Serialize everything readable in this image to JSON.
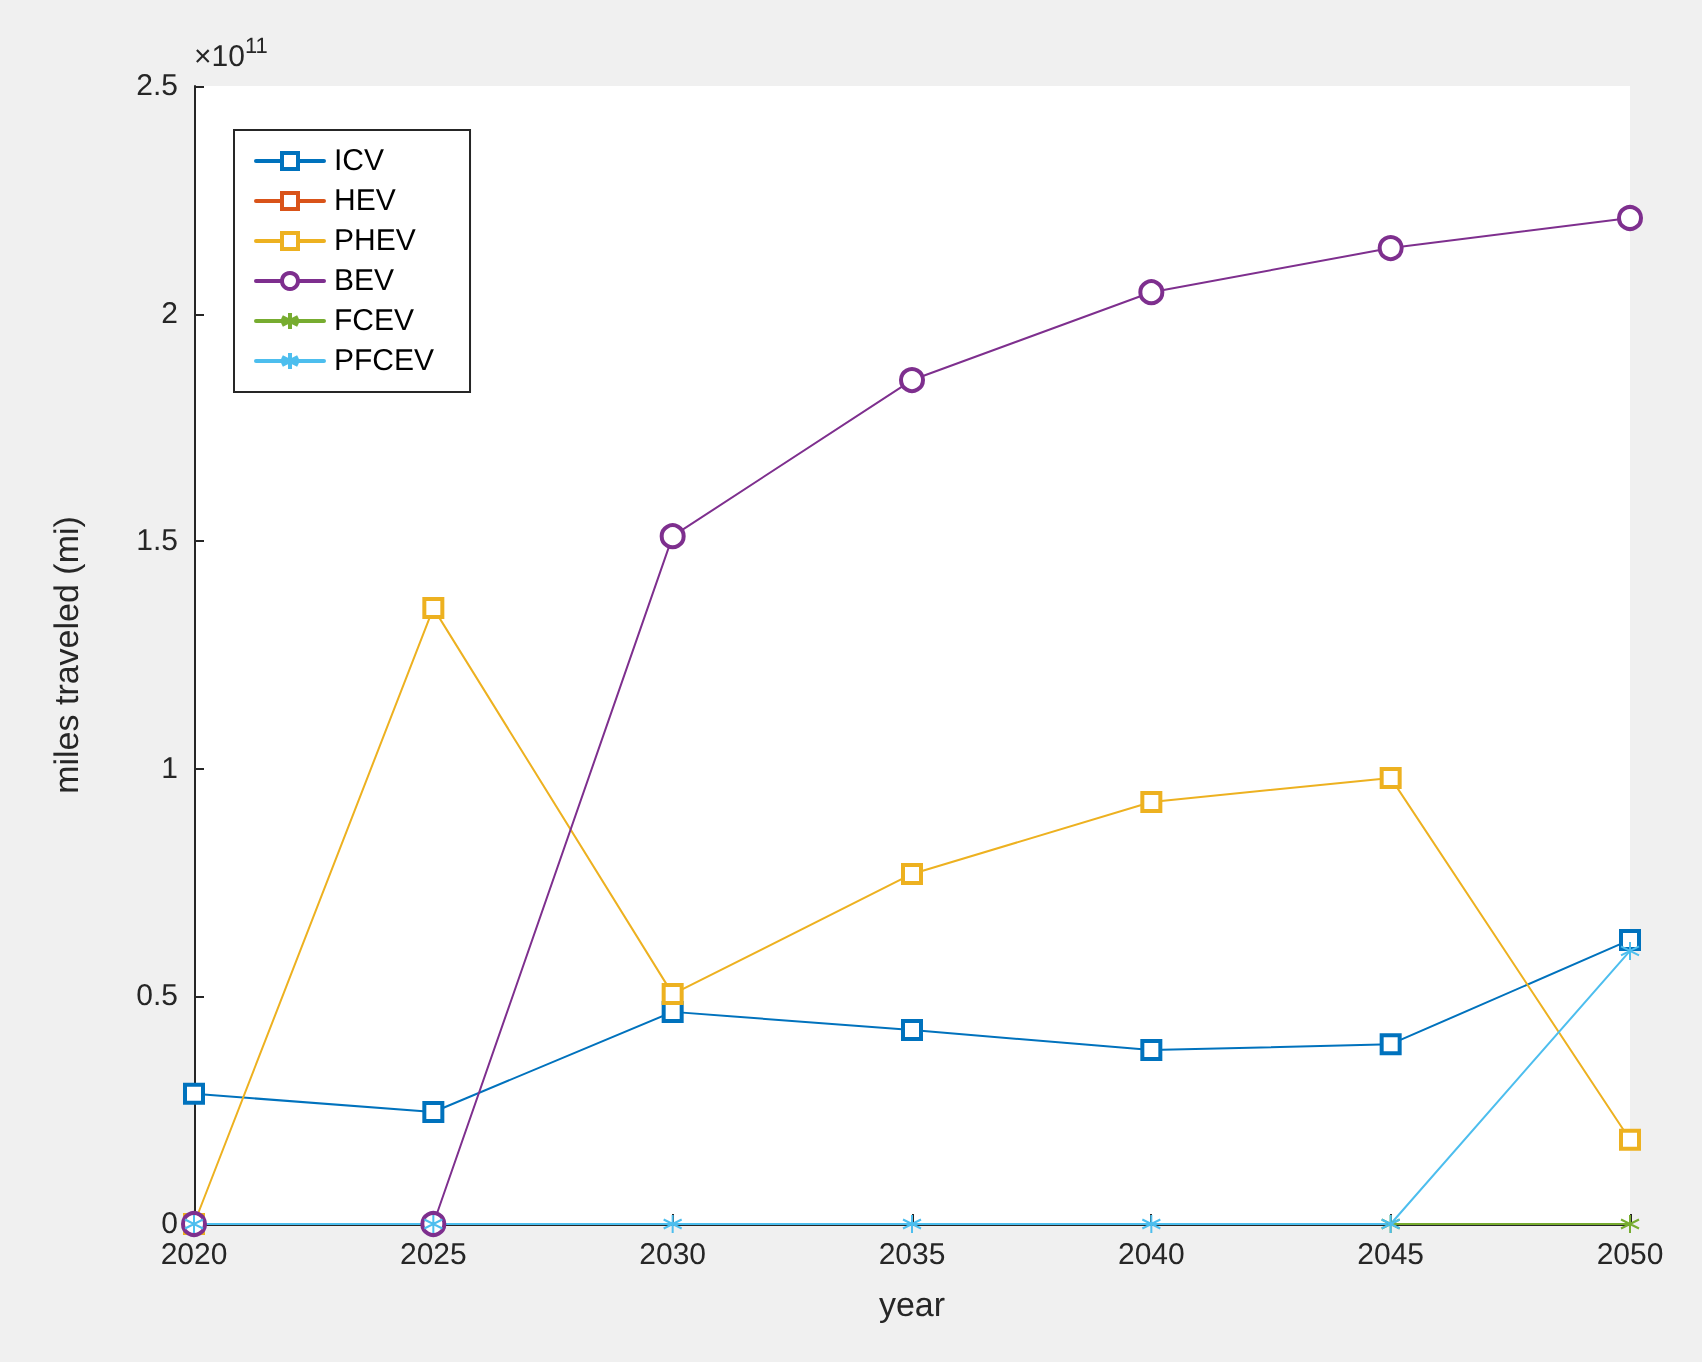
{
  "chart_data": {
    "type": "line",
    "xlabel": "year",
    "ylabel": "miles traveled (mi)",
    "annotations": [
      "×10$^{11}$"
    ],
    "x": [
      2020,
      2025,
      2030,
      2035,
      2040,
      2045,
      2050
    ],
    "xlim": [
      2020,
      2050
    ],
    "xticks": [
      2020,
      2025,
      2030,
      2035,
      2040,
      2045,
      2050
    ],
    "ylim": [
      0,
      2.5
    ],
    "yticks": [
      0,
      0.5,
      1,
      1.5,
      2,
      2.5
    ],
    "grid": false,
    "legend": "top left",
    "line_style": "solid",
    "series": [
      {
        "name": "ICV",
        "color": "#0072bd",
        "marker": "square",
        "values": [
          0.286,
          0.246,
          0.466,
          0.426,
          0.382,
          0.395,
          0.624
        ]
      },
      {
        "name": "HEV",
        "color": "#d95319",
        "marker": "square",
        "values": [
          null,
          null,
          null,
          null,
          null,
          null,
          null
        ]
      },
      {
        "name": "PHEV",
        "color": "#edb120",
        "marker": "square",
        "values": [
          0,
          1.353,
          0.505,
          0.769,
          0.927,
          0.98,
          0.185
        ]
      },
      {
        "name": "BEV",
        "color": "#7e2f8e",
        "marker": "circle",
        "values": [
          0,
          0,
          1.511,
          1.854,
          2.047,
          2.144,
          2.21
        ]
      },
      {
        "name": "FCEV",
        "color": "#77ac30",
        "marker": "cross",
        "values": [
          null,
          null,
          null,
          null,
          null,
          0,
          0
        ]
      },
      {
        "name": "PFCEV",
        "color": "#4dbeee",
        "marker": "cross",
        "values": [
          0,
          0,
          0,
          0,
          0,
          0,
          0.6
        ]
      }
    ]
  }
}
